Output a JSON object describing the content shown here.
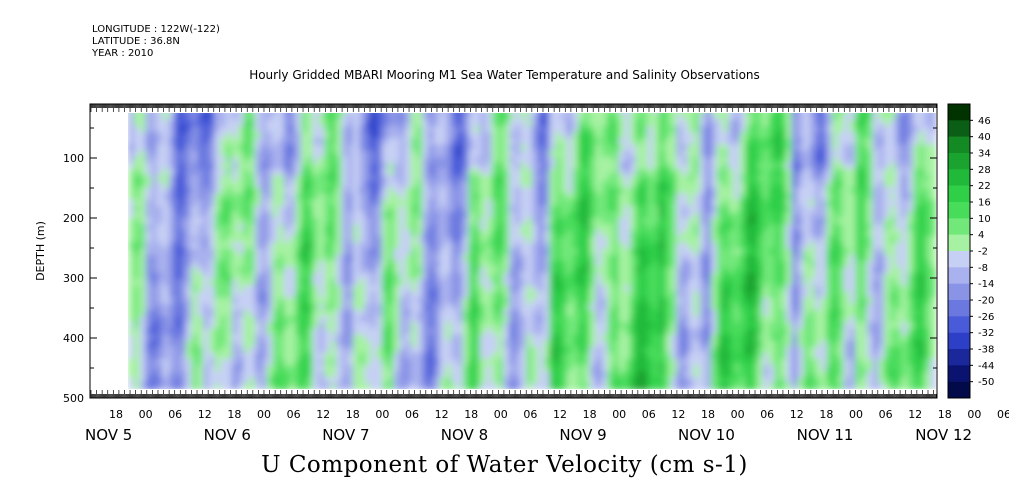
{
  "header": {
    "longitude": "LONGITUDE : 122W(-122)",
    "latitude": "LATITUDE : 36.8N",
    "year": "YEAR : 2010"
  },
  "chart_data": {
    "type": "heatmap",
    "title": "Hourly Gridded MBARI Mooring M1 Sea Water Temperature and Salinity Observations",
    "xlabel": "U Component of Water Velocity (cm s-1)",
    "ylabel": "DEPTH (m)",
    "ylim": [
      500,
      10
    ],
    "y_ticks": [
      100,
      200,
      300,
      400,
      500
    ],
    "y_tick_labels": [
      "100",
      "200",
      "300",
      "400",
      "500"
    ],
    "x_hour_ticks": [
      "18",
      "00",
      "06",
      "12",
      "18",
      "00",
      "06",
      "12",
      "18",
      "00",
      "06",
      "12",
      "18",
      "00",
      "06",
      "12",
      "18",
      "00",
      "06",
      "12",
      "18",
      "00",
      "06",
      "12",
      "18",
      "00",
      "06",
      "12",
      "18",
      "00",
      "06",
      "12"
    ],
    "x_date_labels": [
      "NOV  5",
      "NOV  6",
      "NOV  7",
      "NOV  8",
      "NOV  9",
      "NOV 10",
      "NOV 11",
      "NOV 12"
    ],
    "data_depth_range": [
      16,
      486
    ],
    "colorbar": {
      "levels": [
        46,
        40,
        34,
        28,
        22,
        16,
        10,
        4,
        -2,
        -8,
        -14,
        -20,
        -26,
        -32,
        -38,
        -44,
        -50
      ],
      "level_labels": [
        "46",
        "40",
        "34",
        "28",
        "22",
        "16",
        "10",
        "4",
        "-2",
        "-8",
        "-14",
        "-20",
        "-26",
        "-32",
        "-38",
        "-44",
        "-50"
      ],
      "colors_top_to_bottom": [
        "#003300",
        "#0b5e16",
        "#138a24",
        "#1aa32f",
        "#21b93a",
        "#2fcf48",
        "#48dc5b",
        "#72e87a",
        "#a6f2a2",
        "#c6d0f4",
        "#a9b1ee",
        "#8a94e6",
        "#6a78e0",
        "#4a5bd9",
        "#2c3fc6",
        "#1a289c",
        "#0a1470",
        "#020a4a"
      ]
    }
  }
}
